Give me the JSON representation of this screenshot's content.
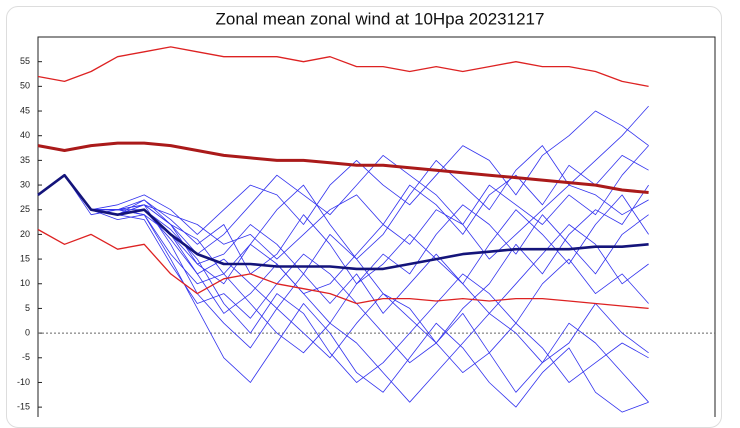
{
  "chart_data": {
    "type": "line",
    "title": "Zonal mean zonal wind at 10Hpa 20231217",
    "x": [
      0,
      2,
      4,
      6,
      8,
      10,
      12,
      14,
      16,
      18,
      20,
      22,
      24,
      26,
      28,
      30,
      32,
      34,
      36,
      38,
      40,
      42,
      44,
      46
    ],
    "xlim": [
      0,
      51
    ],
    "ylim": [
      -17,
      60
    ],
    "yticks": [
      55,
      50,
      45,
      40,
      35,
      30,
      25,
      20,
      15,
      10,
      5,
      0,
      -5,
      -10,
      -15
    ],
    "zero_line": true,
    "series": [
      {
        "color": "#3333ee",
        "linewidth": 0.8,
        "values": [
          28,
          32,
          25,
          24,
          27,
          22,
          14,
          10,
          18,
          25,
          30,
          22,
          15,
          20,
          28,
          35,
          30,
          25,
          33,
          38,
          30,
          35,
          40,
          46
        ]
      },
      {
        "color": "#3333ee",
        "linewidth": 0.8,
        "values": [
          28,
          32,
          25,
          25,
          26,
          18,
          8,
          2,
          -3,
          5,
          12,
          20,
          15,
          8,
          3,
          -2,
          5,
          10,
          18,
          12,
          20,
          25,
          22,
          30
        ]
      },
      {
        "color": "#3333ee",
        "linewidth": 0.8,
        "values": [
          28,
          32,
          25,
          23,
          24,
          15,
          5,
          -5,
          -10,
          -2,
          6,
          0,
          -8,
          -12,
          -5,
          2,
          -3,
          -10,
          -15,
          -8,
          -3,
          -12,
          -16,
          -14
        ]
      },
      {
        "color": "#3333ee",
        "linewidth": 0.8,
        "values": [
          28,
          32,
          25,
          26,
          28,
          25,
          20,
          25,
          30,
          28,
          22,
          30,
          35,
          30,
          26,
          32,
          38,
          35,
          28,
          36,
          40,
          45,
          42,
          38
        ]
      },
      {
        "color": "#3333ee",
        "linewidth": 0.8,
        "values": [
          28,
          32,
          24,
          25,
          25,
          20,
          12,
          15,
          10,
          5,
          0,
          -5,
          2,
          8,
          5,
          -2,
          -8,
          -4,
          2,
          -3,
          -10,
          -6,
          -2,
          -5
        ]
      },
      {
        "color": "#3333ee",
        "linewidth": 0.8,
        "values": [
          28,
          32,
          25,
          24,
          26,
          24,
          22,
          18,
          20,
          15,
          20,
          25,
          28,
          22,
          18,
          25,
          22,
          15,
          20,
          25,
          30,
          28,
          24,
          27
        ]
      },
      {
        "color": "#3333ee",
        "linewidth": 0.8,
        "values": [
          28,
          32,
          25,
          25,
          24,
          16,
          10,
          12,
          18,
          14,
          8,
          10,
          16,
          22,
          30,
          26,
          20,
          28,
          32,
          26,
          34,
          30,
          36,
          33
        ]
      },
      {
        "color": "#3333ee",
        "linewidth": 0.8,
        "values": [
          28,
          32,
          25,
          24,
          25,
          21,
          15,
          6,
          0,
          8,
          4,
          -4,
          -10,
          -6,
          0,
          6,
          12,
          8,
          2,
          10,
          15,
          8,
          12,
          6
        ]
      },
      {
        "color": "#3333ee",
        "linewidth": 0.8,
        "values": [
          28,
          32,
          25,
          25,
          27,
          23,
          18,
          22,
          12,
          16,
          24,
          18,
          10,
          14,
          20,
          15,
          10,
          18,
          25,
          20,
          14,
          22,
          28,
          20
        ]
      },
      {
        "color": "#3333ee",
        "linewidth": 0.8,
        "values": [
          28,
          32,
          25,
          24,
          23,
          14,
          6,
          8,
          3,
          10,
          16,
          12,
          6,
          0,
          -6,
          -2,
          4,
          -4,
          -12,
          -6,
          2,
          -2,
          -8,
          -14
        ]
      },
      {
        "color": "#3333ee",
        "linewidth": 0.8,
        "values": [
          28,
          32,
          25,
          25,
          26,
          22,
          16,
          20,
          26,
          32,
          28,
          24,
          30,
          36,
          32,
          28,
          22,
          30,
          26,
          22,
          28,
          24,
          32,
          38
        ]
      },
      {
        "color": "#3333ee",
        "linewidth": 0.8,
        "values": [
          28,
          32,
          25,
          24,
          25,
          19,
          12,
          4,
          8,
          14,
          8,
          2,
          10,
          16,
          12,
          20,
          26,
          22,
          16,
          24,
          18,
          12,
          20,
          24
        ]
      },
      {
        "color": "#3333ee",
        "linewidth": 0.8,
        "values": [
          28,
          32,
          25,
          25,
          24,
          20,
          14,
          16,
          22,
          18,
          12,
          6,
          12,
          4,
          10,
          16,
          10,
          4,
          10,
          16,
          22,
          18,
          10,
          14
        ]
      },
      {
        "color": "#3333ee",
        "linewidth": 0.8,
        "values": [
          28,
          32,
          25,
          24,
          26,
          22,
          19,
          12,
          6,
          0,
          -4,
          2,
          -2,
          -8,
          -14,
          -8,
          -2,
          4,
          0,
          -6,
          -2,
          6,
          0,
          -4
        ]
      },
      {
        "color": "#dd2222",
        "linewidth": 1.3,
        "values": [
          52,
          51,
          53,
          56,
          57,
          58,
          57,
          56,
          56,
          56,
          55,
          56,
          54,
          54,
          53,
          54,
          53,
          54,
          55,
          54,
          54,
          53,
          51,
          50
        ]
      },
      {
        "color": "#dd2222",
        "linewidth": 1.3,
        "values": [
          21,
          18,
          20,
          17,
          18,
          12,
          8,
          11,
          12,
          10,
          9,
          8,
          6,
          7,
          7,
          6.5,
          7,
          6.5,
          7,
          7,
          6.5,
          6,
          5.5,
          5
        ]
      },
      {
        "color": "#aa1a1a",
        "linewidth": 3,
        "values": [
          38,
          37,
          38,
          38.5,
          38.5,
          38,
          37,
          36,
          35.5,
          35,
          35,
          34.5,
          34,
          34,
          33.5,
          33,
          32.5,
          32,
          31.5,
          31,
          30.5,
          30,
          29,
          28.5
        ]
      },
      {
        "color": "#14147a",
        "linewidth": 2.6,
        "values": [
          28,
          32,
          25,
          24,
          25,
          20,
          16,
          14,
          14,
          13.5,
          13.5,
          13.5,
          13,
          13,
          14,
          15,
          16,
          16.5,
          17,
          17,
          17,
          17.5,
          17.5,
          18
        ]
      }
    ]
  }
}
